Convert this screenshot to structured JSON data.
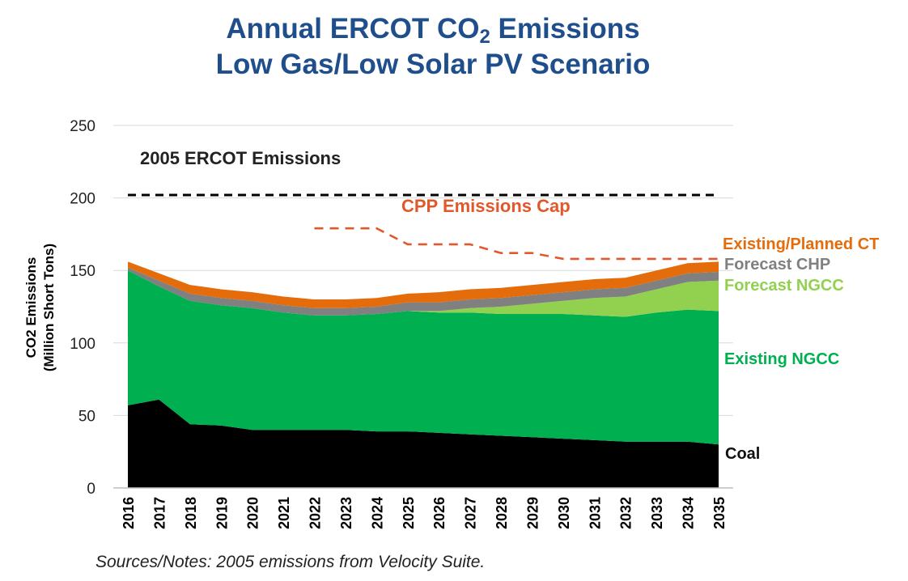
{
  "title": {
    "line1_prefix": "Annual ERCOT CO",
    "line1_sub": "2",
    "line1_suffix": " Emissions",
    "line2": "Low Gas/Low Solar PV Scenario"
  },
  "notes": "Sources/Notes: 2005 emissions from Velocity Suite.",
  "chart_data": {
    "type": "area",
    "stacked": true,
    "title": "Annual ERCOT CO2 Emissions Low Gas/Low Solar PV Scenario",
    "ylabel": "CO2 Emissions",
    "ylabel_units": "(Million Short Tons)",
    "xlabel": "",
    "ylim": [
      0,
      250
    ],
    "yticks": [
      0,
      50,
      100,
      150,
      200,
      250
    ],
    "grid": true,
    "x": [
      "2016",
      "2017",
      "2018",
      "2019",
      "2020",
      "2021",
      "2022",
      "2023",
      "2024",
      "2025",
      "2026",
      "2027",
      "2028",
      "2029",
      "2030",
      "2031",
      "2032",
      "2033",
      "2034",
      "2035"
    ],
    "series": [
      {
        "name": "Coal",
        "color": "#000000",
        "values": [
          57,
          61,
          44,
          43,
          40,
          40,
          40,
          40,
          39,
          39,
          38,
          37,
          36,
          35,
          34,
          33,
          32,
          32,
          32,
          30
        ]
      },
      {
        "name": "Existing NGCC",
        "color": "#00b050",
        "values": [
          93,
          78,
          85,
          83,
          84,
          81,
          79,
          79,
          81,
          83,
          83,
          84,
          84,
          85,
          86,
          86,
          86,
          89,
          91,
          92
        ]
      },
      {
        "name": "Forecast NGCC",
        "color": "#92d050",
        "values": [
          0,
          0,
          0,
          0,
          0,
          0,
          0,
          0,
          0,
          0,
          1,
          3,
          5,
          7,
          9,
          12,
          14,
          16,
          19,
          21
        ]
      },
      {
        "name": "Forecast CHP",
        "color": "#808080",
        "values": [
          2,
          4,
          5,
          5,
          5,
          5,
          5,
          5,
          5,
          6,
          6,
          6,
          6,
          6,
          6,
          6,
          6,
          6,
          6,
          6
        ]
      },
      {
        "name": "Existing/Planned CT",
        "color": "#e46c0a",
        "values": [
          4,
          5,
          6,
          6,
          6,
          6,
          6,
          6,
          6,
          6,
          7,
          7,
          7,
          7,
          7,
          7,
          7,
          7,
          7,
          7
        ]
      }
    ],
    "reference_lines": [
      {
        "name": "2005 ERCOT Emissions",
        "color": "#000000",
        "style": "dashed",
        "x": [
          "2016",
          "2035"
        ],
        "values": [
          202,
          202
        ]
      },
      {
        "name": "CPP Emissions Cap",
        "color": "#e3582b",
        "style": "dashed",
        "x": [
          "2022",
          "2024",
          "2025",
          "2027",
          "2028",
          "2029",
          "2030",
          "2035"
        ],
        "values": [
          179,
          179,
          168,
          168,
          162,
          162,
          158,
          158
        ]
      }
    ],
    "legend_placement": "right, inline labels"
  }
}
